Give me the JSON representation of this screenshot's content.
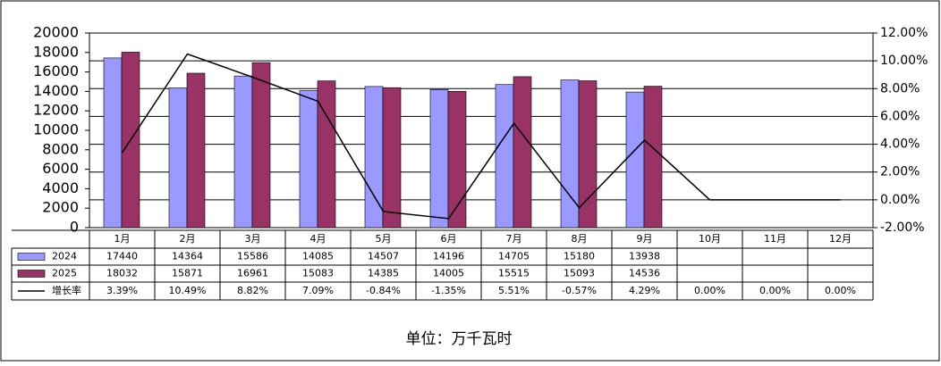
{
  "chart_data": {
    "type": "bar",
    "categories": [
      "1月",
      "2月",
      "3月",
      "4月",
      "5月",
      "6月",
      "7月",
      "8月",
      "9月",
      "10月",
      "11月",
      "12月"
    ],
    "series": [
      {
        "name": "2024",
        "color": "#9999ff",
        "values": [
          17440,
          14364,
          15586,
          14085,
          14507,
          14196,
          14705,
          15180,
          13938,
          null,
          null,
          null
        ]
      },
      {
        "name": "2025",
        "color": "#993366",
        "values": [
          18032,
          15871,
          16961,
          15083,
          14385,
          14005,
          15515,
          15093,
          14536,
          null,
          null,
          null
        ]
      },
      {
        "name": "增长率",
        "type": "line",
        "axis": "y2",
        "color": "#000000",
        "values": [
          3.39,
          10.49,
          8.82,
          7.09,
          -0.84,
          -1.35,
          5.51,
          -0.57,
          4.29,
          0,
          0,
          0
        ],
        "value_labels": [
          "3.39%",
          "10.49%",
          "8.82%",
          "7.09%",
          "-0.84%",
          "-1.35%",
          "5.51%",
          "-0.57%",
          "4.29%",
          "0.00%",
          "0.00%",
          "0.00%"
        ]
      }
    ],
    "ylim": [
      0,
      20000
    ],
    "yticks": [
      0,
      2000,
      4000,
      6000,
      8000,
      10000,
      12000,
      14000,
      16000,
      18000,
      20000
    ],
    "y2lim": [
      -2,
      12
    ],
    "y2ticks": [
      {
        "value": -2,
        "label": "-2.00%"
      },
      {
        "value": 0,
        "label": "0.00%"
      },
      {
        "value": 2,
        "label": "2.00%"
      },
      {
        "value": 4,
        "label": "4.00%"
      },
      {
        "value": 6,
        "label": "6.00%"
      },
      {
        "value": 8,
        "label": "8.00%"
      },
      {
        "value": 10,
        "label": "10.00%"
      },
      {
        "value": 12,
        "label": "12.00%"
      }
    ],
    "grid": true,
    "unit": "单位：万千瓦时"
  }
}
